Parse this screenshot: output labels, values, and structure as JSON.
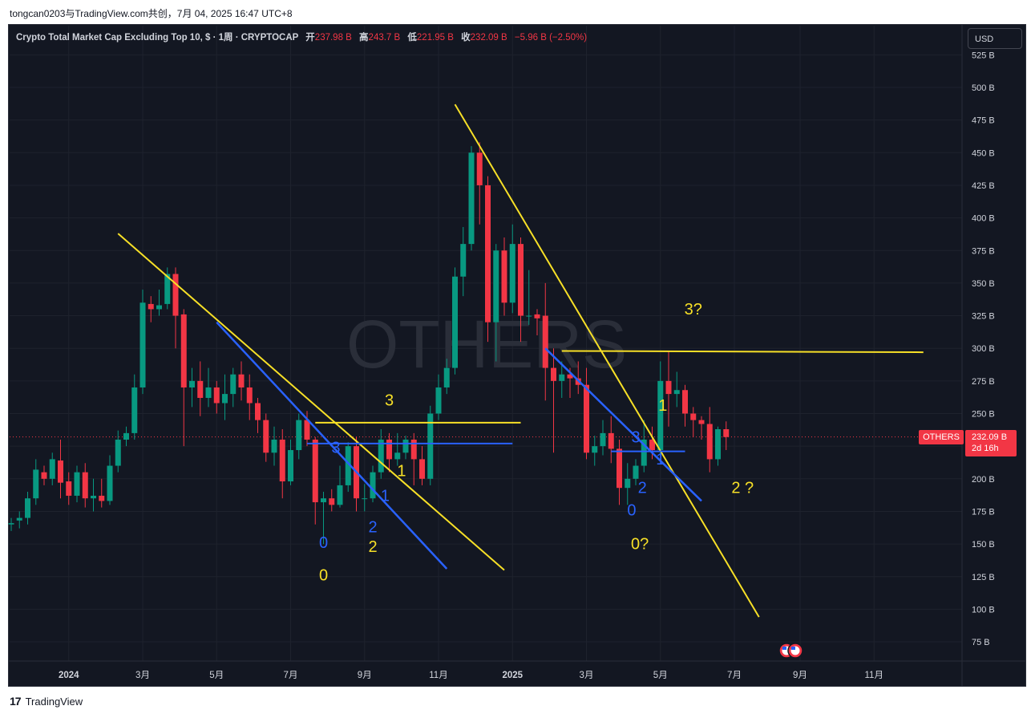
{
  "header": {
    "author_line": "tongcan0203与TradingView.com共创，7月 04, 2025 16:47 UTC+8"
  },
  "legend": {
    "symbol_title": "Crypto Total Market Cap Excluding Top 10, $ · 1周 · CRYPTOCAP",
    "open_label": "开",
    "open_value": "237.98 B",
    "high_label": "高",
    "high_value": "243.7 B",
    "low_label": "低",
    "low_value": "221.95 B",
    "close_label": "收",
    "close_value": "232.09 B",
    "change_value": "−5.96 B (−2.50%)"
  },
  "currency_button": "USD",
  "watermark": "OTHERS",
  "price_tag": {
    "symbol": "OTHERS",
    "price": "232.09 B",
    "countdown": "2d 16h"
  },
  "footer": {
    "logo_text": "TradingView"
  },
  "colors": {
    "background": "#131722",
    "up_candle": "#089981",
    "down_candle": "#f23645",
    "trendline_yellow": "#f7e027",
    "trendline_blue": "#2962ff",
    "wave_yellow_text": "#f7e027",
    "wave_blue_text": "#2962ff",
    "axis_text": "#d1d4dc",
    "last_price_line": "#f23645"
  },
  "chart_data": {
    "type": "candlestick",
    "timeframe": "1周",
    "ylim": [
      60,
      530
    ],
    "y_ticks": [
      "75 B",
      "100 B",
      "125 B",
      "150 B",
      "175 B",
      "200 B",
      "225 B",
      "250 B",
      "275 B",
      "300 B",
      "325 B",
      "350 B",
      "375 B",
      "400 B",
      "425 B",
      "450 B",
      "475 B",
      "500 B",
      "525 B"
    ],
    "y_tick_values": [
      75,
      100,
      125,
      150,
      175,
      200,
      225,
      250,
      275,
      300,
      325,
      350,
      375,
      400,
      425,
      450,
      475,
      500,
      525
    ],
    "x_ticks": [
      {
        "label": "2024",
        "bold": true,
        "index": 7
      },
      {
        "label": "3月",
        "bold": false,
        "index": 16
      },
      {
        "label": "5月",
        "bold": false,
        "index": 25
      },
      {
        "label": "7月",
        "bold": false,
        "index": 34
      },
      {
        "label": "9月",
        "bold": false,
        "index": 43
      },
      {
        "label": "11月",
        "bold": false,
        "index": 52
      },
      {
        "label": "2025",
        "bold": true,
        "index": 61
      },
      {
        "label": "3月",
        "bold": false,
        "index": 70
      },
      {
        "label": "5月",
        "bold": false,
        "index": 79
      },
      {
        "label": "7月",
        "bold": false,
        "index": 88
      },
      {
        "label": "9月",
        "bold": false,
        "index": 96
      },
      {
        "label": "11月",
        "bold": false,
        "index": 105
      }
    ],
    "last_price": 232.09,
    "candles": [
      [
        165,
        166,
        160,
        170
      ],
      [
        168,
        170,
        162,
        175
      ],
      [
        170,
        185,
        165,
        190
      ],
      [
        185,
        207,
        180,
        215
      ],
      [
        205,
        200,
        195,
        210
      ],
      [
        200,
        215,
        195,
        220
      ],
      [
        214,
        197,
        185,
        230
      ],
      [
        198,
        187,
        180,
        205
      ],
      [
        187,
        205,
        182,
        210
      ],
      [
        205,
        185,
        178,
        212
      ],
      [
        185,
        187,
        175,
        200
      ],
      [
        187,
        183,
        178,
        200
      ],
      [
        183,
        210,
        180,
        218
      ],
      [
        210,
        230,
        205,
        237
      ],
      [
        230,
        235,
        225,
        240
      ],
      [
        235,
        270,
        230,
        280
      ],
      [
        270,
        335,
        265,
        345
      ],
      [
        334,
        330,
        320,
        340
      ],
      [
        330,
        333,
        325,
        345
      ],
      [
        334,
        357,
        330,
        362
      ],
      [
        357,
        325,
        300,
        362
      ],
      [
        326,
        270,
        225,
        330
      ],
      [
        270,
        275,
        255,
        285
      ],
      [
        275,
        262,
        248,
        290
      ],
      [
        262,
        270,
        255,
        285
      ],
      [
        270,
        258,
        250,
        275
      ],
      [
        258,
        265,
        245,
        280
      ],
      [
        265,
        280,
        255,
        285
      ],
      [
        280,
        270,
        260,
        290
      ],
      [
        270,
        258,
        245,
        280
      ],
      [
        258,
        245,
        235,
        262
      ],
      [
        245,
        220,
        213,
        250
      ],
      [
        220,
        230,
        210,
        240
      ],
      [
        230,
        198,
        185,
        238
      ],
      [
        198,
        222,
        195,
        230
      ],
      [
        222,
        245,
        215,
        250
      ],
      [
        245,
        230,
        225,
        252
      ],
      [
        230,
        182,
        165,
        232
      ],
      [
        182,
        185,
        150,
        190
      ],
      [
        185,
        180,
        175,
        192
      ],
      [
        180,
        195,
        178,
        210
      ],
      [
        195,
        225,
        190,
        228
      ],
      [
        225,
        185,
        175,
        232
      ],
      [
        185,
        185,
        175,
        196
      ],
      [
        185,
        205,
        182,
        210
      ],
      [
        205,
        230,
        200,
        238
      ],
      [
        230,
        215,
        205,
        235
      ],
      [
        215,
        220,
        210,
        235
      ],
      [
        220,
        230,
        215,
        233
      ],
      [
        230,
        215,
        195,
        235
      ],
      [
        215,
        200,
        195,
        225
      ],
      [
        200,
        250,
        195,
        256
      ],
      [
        250,
        270,
        245,
        280
      ],
      [
        270,
        285,
        265,
        292
      ],
      [
        285,
        355,
        280,
        362
      ],
      [
        355,
        380,
        340,
        393
      ],
      [
        380,
        450,
        375,
        455
      ],
      [
        450,
        425,
        395,
        458
      ],
      [
        425,
        320,
        305,
        432
      ],
      [
        320,
        375,
        290,
        380
      ],
      [
        375,
        335,
        325,
        385
      ],
      [
        335,
        380,
        327,
        395
      ],
      [
        380,
        325,
        305,
        385
      ],
      [
        325,
        325,
        318,
        360
      ],
      [
        326,
        323,
        310,
        330
      ],
      [
        325,
        285,
        260,
        350
      ],
      [
        285,
        275,
        220,
        300
      ],
      [
        275,
        280,
        262,
        290
      ],
      [
        280,
        277,
        262,
        285
      ],
      [
        277,
        272,
        265,
        290
      ],
      [
        272,
        220,
        215,
        285
      ],
      [
        220,
        225,
        210,
        233
      ],
      [
        225,
        235,
        218,
        245
      ],
      [
        235,
        223,
        212,
        248
      ],
      [
        223,
        193,
        180,
        230
      ],
      [
        193,
        200,
        180,
        212
      ],
      [
        200,
        210,
        195,
        215
      ],
      [
        210,
        230,
        205,
        245
      ],
      [
        230,
        222,
        215,
        240
      ],
      [
        222,
        275,
        218,
        290
      ],
      [
        275,
        265,
        240,
        298
      ],
      [
        265,
        268,
        255,
        282
      ],
      [
        268,
        250,
        240,
        272
      ],
      [
        250,
        245,
        232,
        255
      ],
      [
        245,
        242,
        230,
        248
      ],
      [
        242,
        215,
        205,
        255
      ],
      [
        215,
        238,
        210,
        240
      ],
      [
        238,
        232,
        222,
        244
      ]
    ],
    "trendlines": [
      {
        "color": "yellow",
        "from": [
          13,
          388
        ],
        "to": [
          60,
          130
        ]
      },
      {
        "color": "yellow",
        "from": [
          54,
          487
        ],
        "to": [
          91,
          94
        ]
      },
      {
        "color": "yellow",
        "from": [
          37,
          243
        ],
        "to": [
          62,
          243
        ]
      },
      {
        "color": "yellow",
        "from": [
          67,
          298
        ],
        "to": [
          111,
          297
        ]
      },
      {
        "color": "blue",
        "from": [
          25,
          320
        ],
        "to": [
          53,
          131
        ]
      },
      {
        "color": "blue",
        "from": [
          36,
          227
        ],
        "to": [
          61,
          227
        ]
      },
      {
        "color": "blue",
        "from": [
          65,
          300
        ],
        "to": [
          84,
          183
        ]
      },
      {
        "color": "blue",
        "from": [
          73,
          221
        ],
        "to": [
          82,
          221
        ]
      }
    ],
    "annotations": [
      {
        "text": "0",
        "color": "blue",
        "index": 38,
        "price": 147
      },
      {
        "text": "0",
        "color": "yellow",
        "index": 38,
        "price": 122
      },
      {
        "text": "2",
        "color": "blue",
        "index": 44,
        "price": 159
      },
      {
        "text": "2",
        "color": "yellow",
        "index": 44,
        "price": 144
      },
      {
        "text": "3",
        "color": "blue",
        "index": 39.5,
        "price": 220
      },
      {
        "text": "1",
        "color": "blue",
        "index": 45.5,
        "price": 183
      },
      {
        "text": "3",
        "color": "yellow",
        "index": 46,
        "price": 256
      },
      {
        "text": "1",
        "color": "yellow",
        "index": 47.5,
        "price": 202
      },
      {
        "text": "0",
        "color": "blue",
        "index": 75.5,
        "price": 172
      },
      {
        "text": "0?",
        "color": "yellow",
        "index": 76.5,
        "price": 146
      },
      {
        "text": "2",
        "color": "blue",
        "index": 76.8,
        "price": 189
      },
      {
        "text": "3",
        "color": "blue",
        "index": 76,
        "price": 228
      },
      {
        "text": "1",
        "color": "blue",
        "index": 79,
        "price": 211
      },
      {
        "text": "1",
        "color": "yellow",
        "index": 79.3,
        "price": 252
      },
      {
        "text": "3?",
        "color": "yellow",
        "index": 83,
        "price": 326
      },
      {
        "text": "2 ?",
        "color": "yellow",
        "index": 89,
        "price": 189
      }
    ]
  }
}
